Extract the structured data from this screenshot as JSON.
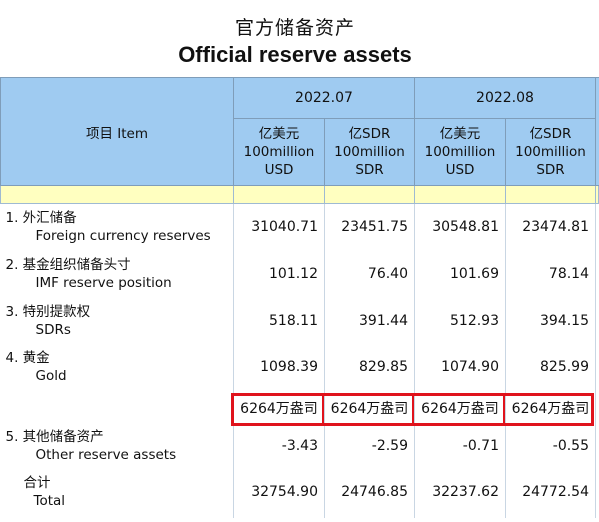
{
  "title": {
    "cn": "官方储备资产",
    "en": "Official reserve assets"
  },
  "header": {
    "item": "项目 Item",
    "periods": [
      "2022.07",
      "2022.08"
    ],
    "units": [
      {
        "cn": "亿美元",
        "en1": "100million",
        "en2": "USD"
      },
      {
        "cn": "亿SDR",
        "en1": "100million",
        "en2": "SDR"
      },
      {
        "cn": "亿美元",
        "en1": "100million",
        "en2": "USD"
      },
      {
        "cn": "亿SDR",
        "en1": "100million",
        "en2": "SDR"
      }
    ]
  },
  "rows": [
    {
      "cn": "1.  外汇储备",
      "en": "Foreign currency reserves",
      "values": [
        "31040.71",
        "23451.75",
        "30548.81",
        "23474.81"
      ]
    },
    {
      "cn": "2.  基金组织储备头寸",
      "en": "IMF reserve position",
      "values": [
        "101.12",
        "76.40",
        "101.69",
        "78.14"
      ]
    },
    {
      "cn": "3.  特别提款权",
      "en": "SDRs",
      "values": [
        "518.11",
        "391.44",
        "512.93",
        "394.15"
      ]
    },
    {
      "cn": "4.  黄金",
      "en": "Gold",
      "values": [
        "1098.39",
        "829.85",
        "1074.90",
        "825.99"
      ]
    }
  ],
  "gold_ounces": [
    "6264万盎司",
    "6264万盎司",
    "6264万盎司",
    "6264万盎司"
  ],
  "other": {
    "cn": "5.  其他储备资产",
    "en": "Other reserve assets",
    "values": [
      "-3.43",
      "-2.59",
      "-0.71",
      "-0.55"
    ]
  },
  "total": {
    "cn": "合计",
    "en": "Total",
    "values": [
      "32754.90",
      "24746.85",
      "32237.62",
      "24772.54"
    ]
  },
  "colors": {
    "header_bg": "#9fcbf1",
    "band_bg": "#ffffc0",
    "highlight_border": "#e0131c"
  }
}
